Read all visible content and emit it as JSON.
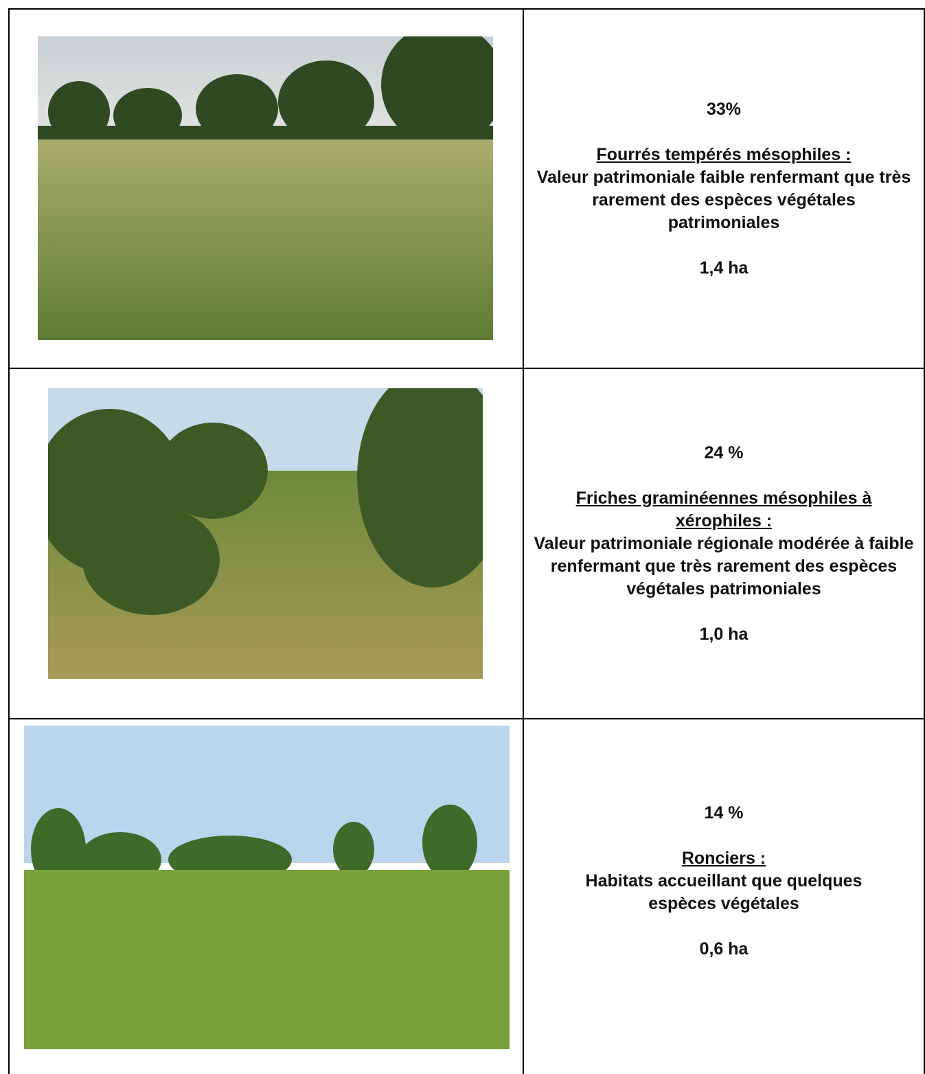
{
  "table": {
    "rows": [
      {
        "percent": "33%",
        "habitat": "Fourrés tempérés mésophiles :",
        "description": "Valeur patrimoniale faible renfermant que très rarement des espèces végétales patrimoniales",
        "area": "1,4 ha"
      },
      {
        "percent": "24 %",
        "habitat": "Friches graminéennes mésophiles à xérophiles :",
        "description": "Valeur patrimoniale régionale modérée à faible renfermant que très rarement des espèces végétales patrimoniales",
        "area": "1,0 ha"
      },
      {
        "percent": "14 %",
        "habitat": "Ronciers :",
        "description": "Habitats accueillant que quelques espèces végétales",
        "area": "0,6 ha"
      }
    ]
  }
}
